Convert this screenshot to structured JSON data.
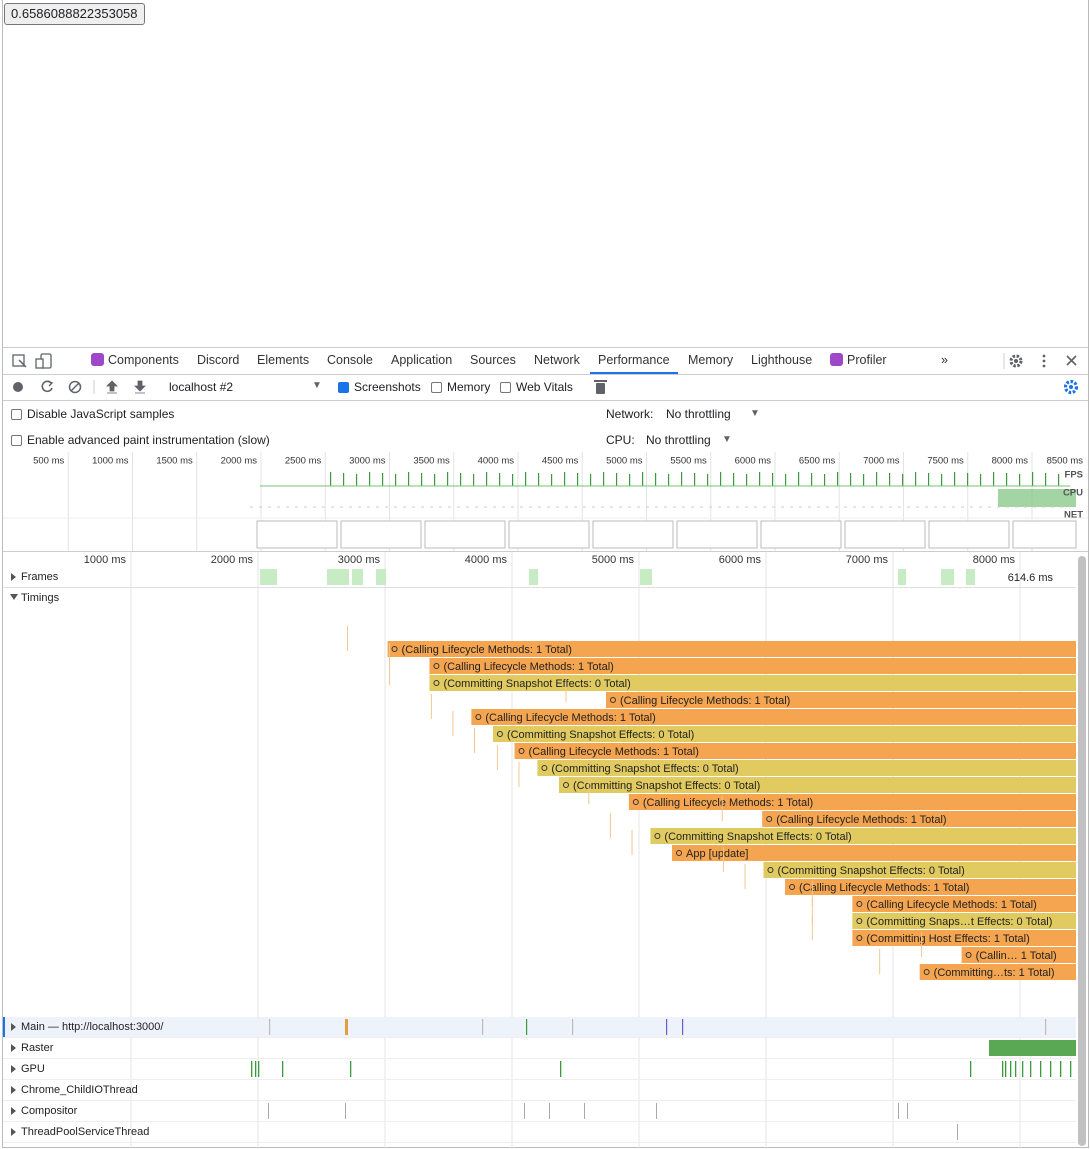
{
  "page": {
    "button": "0.6586088822353058"
  },
  "devtools": {
    "tabs": [
      {
        "label": "Components",
        "icon": true
      },
      {
        "label": "Discord"
      },
      {
        "label": "Elements"
      },
      {
        "label": "Console"
      },
      {
        "label": "Application"
      },
      {
        "label": "Sources"
      },
      {
        "label": "Network"
      },
      {
        "label": "Performance",
        "active": true
      },
      {
        "label": "Memory"
      },
      {
        "label": "Lighthouse"
      },
      {
        "label": "Profiler",
        "icon": true
      }
    ],
    "target": "localhost #2",
    "checkboxes": [
      {
        "label": "Screenshots",
        "checked": true
      },
      {
        "label": "Memory",
        "checked": false
      },
      {
        "label": "Web Vitals",
        "checked": false
      }
    ],
    "settings": {
      "options": [
        {
          "label": "Disable JavaScript samples",
          "checked": false
        },
        {
          "label": "Enable advanced paint instrumentation (slow)",
          "checked": false
        }
      ],
      "network_label": "Network:",
      "network_value": "No throttling",
      "cpu_label": "CPU:",
      "cpu_value": "No throttling"
    }
  },
  "overview": {
    "ticks": [
      {
        "value": 500,
        "label": "500 ms"
      },
      {
        "value": 1000,
        "label": "1000 ms"
      },
      {
        "value": 1500,
        "label": "1500 ms"
      },
      {
        "value": 2000,
        "label": "2000 ms"
      },
      {
        "value": 2500,
        "label": "2500 ms"
      },
      {
        "value": 3000,
        "label": "3000 ms"
      },
      {
        "value": 3500,
        "label": "3500 ms"
      },
      {
        "value": 4000,
        "label": "4000 ms"
      },
      {
        "value": 4500,
        "label": "4500 ms"
      },
      {
        "value": 5000,
        "label": "5000 ms"
      },
      {
        "value": 5500,
        "label": "5500 ms"
      },
      {
        "value": 6000,
        "label": "6000 ms"
      },
      {
        "value": 6500,
        "label": "6500 ms"
      },
      {
        "value": 7000,
        "label": "7000 ms"
      },
      {
        "value": 7500,
        "label": "7500 ms"
      },
      {
        "value": 8000,
        "label": "8000 ms"
      },
      {
        "value": 8500,
        "label": "8500 ms"
      }
    ],
    "lanes": [
      "FPS",
      "CPU",
      "NET"
    ]
  },
  "timeline": {
    "ticks": [
      {
        "value": 1000,
        "label": "1000 ms"
      },
      {
        "value": 2000,
        "label": "2000 ms"
      },
      {
        "value": 3000,
        "label": "3000 ms"
      },
      {
        "value": 4000,
        "label": "4000 ms"
      },
      {
        "value": 5000,
        "label": "5000 ms"
      },
      {
        "value": 6000,
        "label": "6000 ms"
      },
      {
        "value": 7000,
        "label": "7000 ms"
      },
      {
        "value": 8000,
        "label": "8000 ms"
      }
    ],
    "frames": {
      "label": "Frames",
      "duration": "614.6 ms"
    },
    "timings": {
      "label": "Timings",
      "events": [
        {
          "label": "(Calling Lifecycle Methods: 1 Total)",
          "start": 3020,
          "color": "#f5a54f"
        },
        {
          "label": "(Calling Lifecycle Methods: 1 Total)",
          "start": 3350,
          "color": "#f5a54f"
        },
        {
          "label": "(Committing Snapshot Effects: 0 Total)",
          "start": 3350,
          "color": "#e1cb60"
        },
        {
          "label": "(Calling Lifecycle Methods: 1 Total)",
          "start": 4740,
          "color": "#f5a54f"
        },
        {
          "label": "(Calling Lifecycle Methods: 1 Total)",
          "start": 3680,
          "color": "#f5a54f"
        },
        {
          "label": "(Committing Snapshot Effects: 0 Total)",
          "start": 3850,
          "color": "#e1cb60"
        },
        {
          "label": "(Calling Lifecycle Methods: 1 Total)",
          "start": 4020,
          "color": "#f5a54f"
        },
        {
          "label": "(Committing Snapshot Effects: 0 Total)",
          "start": 4200,
          "color": "#e1cb60"
        },
        {
          "label": "(Committing Snapshot Effects: 0 Total)",
          "start": 4370,
          "color": "#e1cb60"
        },
        {
          "label": "(Calling Lifecycle Methods: 1 Total)",
          "start": 4920,
          "color": "#f5a54f"
        },
        {
          "label": "(Calling Lifecycle Methods: 1 Total)",
          "start": 5970,
          "color": "#f5a54f"
        },
        {
          "label": "(Committing Snapshot Effects: 0 Total)",
          "start": 5090,
          "color": "#e1cb60"
        },
        {
          "label": "App [update]",
          "start": 5260,
          "color": "#f5a54f"
        },
        {
          "label": "(Committing Snapshot Effects: 0 Total)",
          "start": 5980,
          "color": "#e1cb60"
        },
        {
          "label": "(Calling Lifecycle Methods: 1 Total)",
          "start": 6150,
          "color": "#f5a54f"
        },
        {
          "label": "(Calling Lifecycle Methods: 1 Total)",
          "start": 6680,
          "color": "#f5a54f"
        },
        {
          "label": "(Committing Snaps…t Effects: 0 Total)",
          "start": 6680,
          "color": "#e1cb60"
        },
        {
          "label": "(Committing Host Effects: 1 Total)",
          "start": 6680,
          "color": "#f5a54f"
        },
        {
          "label": "(Callin… 1 Total)",
          "start": 7540,
          "color": "#f5a54f"
        },
        {
          "label": "(Committing…ts: 1 Total)",
          "start": 7210,
          "color": "#f5a54f"
        }
      ]
    },
    "tracks": [
      "Main — http://localhost:3000/",
      "Raster",
      "GPU",
      "Chrome_ChildIOThread",
      "Compositor",
      "ThreadPoolServiceThread"
    ]
  }
}
